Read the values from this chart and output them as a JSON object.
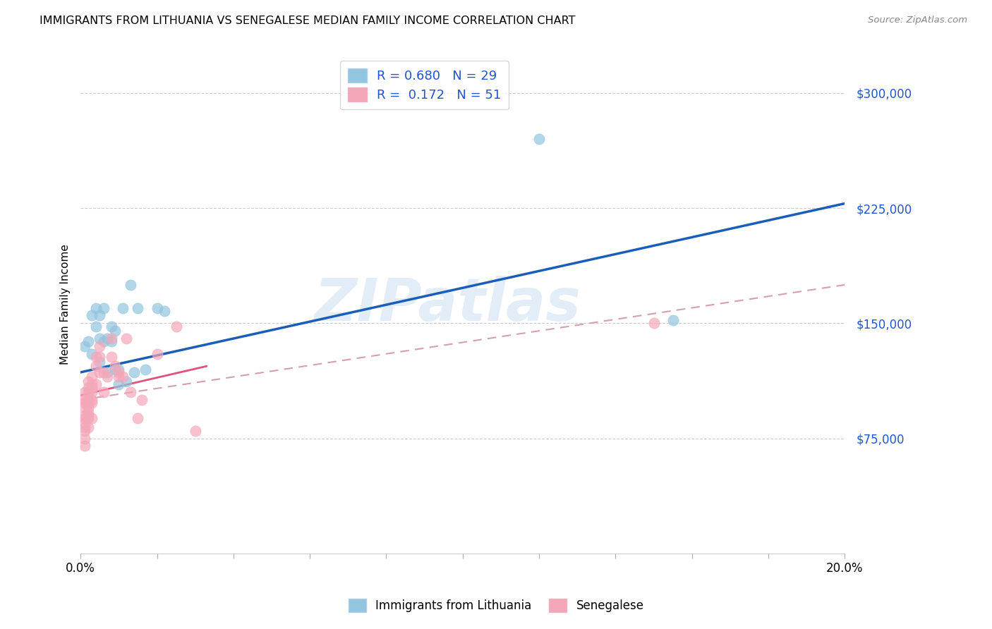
{
  "title": "IMMIGRANTS FROM LITHUANIA VS SENEGALESE MEDIAN FAMILY INCOME CORRELATION CHART",
  "source": "Source: ZipAtlas.com",
  "ylabel": "Median Family Income",
  "xlim": [
    0.0,
    0.2
  ],
  "ylim": [
    0,
    325000
  ],
  "ytick_values": [
    75000,
    150000,
    225000,
    300000
  ],
  "ytick_labels": [
    "$75,000",
    "$150,000",
    "$225,000",
    "$300,000"
  ],
  "legend_entry1_R": "0.680",
  "legend_entry1_N": "29",
  "legend_entry2_R": "0.172",
  "legend_entry2_N": "51",
  "blue_color": "#92c5de",
  "pink_color": "#f4a7b9",
  "line_blue_color": "#1a5eb8",
  "line_pink_solid_color": "#e05080",
  "line_pink_dash_color": "#d4a0b0",
  "legend_label1": "Immigrants from Lithuania",
  "legend_label2": "Senegalese",
  "watermark_text": "ZIPatlas",
  "blue_line_x": [
    0.0,
    0.2
  ],
  "blue_line_y": [
    118000,
    228000
  ],
  "pink_solid_line_x": [
    0.0,
    0.033
  ],
  "pink_solid_line_y": [
    103000,
    122000
  ],
  "pink_dash_line_x": [
    0.0,
    0.2
  ],
  "pink_dash_line_y": [
    100000,
    175000
  ],
  "blue_scatter_x": [
    0.001,
    0.002,
    0.003,
    0.003,
    0.004,
    0.004,
    0.005,
    0.005,
    0.005,
    0.006,
    0.006,
    0.007,
    0.007,
    0.008,
    0.008,
    0.009,
    0.009,
    0.01,
    0.01,
    0.011,
    0.012,
    0.013,
    0.014,
    0.015,
    0.017,
    0.02,
    0.022,
    0.12,
    0.155
  ],
  "blue_scatter_y": [
    135000,
    138000,
    155000,
    130000,
    160000,
    148000,
    155000,
    140000,
    125000,
    160000,
    138000,
    140000,
    118000,
    148000,
    138000,
    145000,
    120000,
    120000,
    110000,
    160000,
    112000,
    175000,
    118000,
    160000,
    120000,
    160000,
    158000,
    270000,
    152000
  ],
  "pink_scatter_x": [
    0.001,
    0.001,
    0.001,
    0.001,
    0.001,
    0.001,
    0.001,
    0.001,
    0.001,
    0.001,
    0.001,
    0.002,
    0.002,
    0.002,
    0.002,
    0.002,
    0.002,
    0.002,
    0.002,
    0.002,
    0.002,
    0.003,
    0.003,
    0.003,
    0.003,
    0.003,
    0.003,
    0.003,
    0.004,
    0.004,
    0.004,
    0.005,
    0.005,
    0.005,
    0.006,
    0.006,
    0.007,
    0.008,
    0.008,
    0.009,
    0.01,
    0.01,
    0.011,
    0.012,
    0.013,
    0.015,
    0.016,
    0.02,
    0.025,
    0.03,
    0.15
  ],
  "pink_scatter_y": [
    105000,
    100000,
    98000,
    95000,
    90000,
    88000,
    85000,
    82000,
    80000,
    75000,
    70000,
    112000,
    108000,
    105000,
    100000,
    98000,
    95000,
    92000,
    90000,
    88000,
    82000,
    115000,
    110000,
    108000,
    105000,
    100000,
    98000,
    88000,
    128000,
    122000,
    110000,
    135000,
    128000,
    118000,
    118000,
    105000,
    115000,
    140000,
    128000,
    122000,
    118000,
    115000,
    115000,
    140000,
    105000,
    88000,
    100000,
    130000,
    148000,
    80000,
    150000
  ]
}
